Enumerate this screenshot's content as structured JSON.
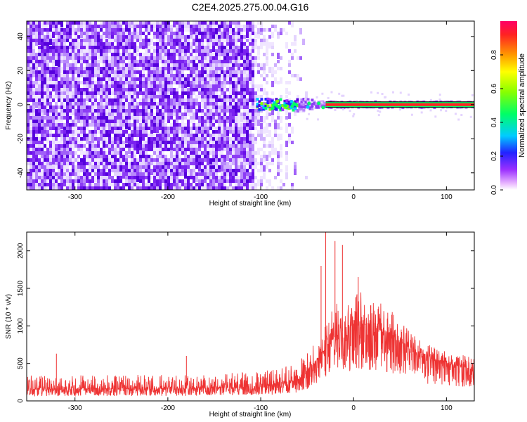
{
  "title": "C2E4.2025.275.00.04.G16",
  "chart_data": [
    {
      "type": "heatmap",
      "xlabel": "Height of straight line (km)",
      "ylabel": "Frequency (Hz)",
      "xlim": [
        -352,
        130
      ],
      "ylim": [
        -50,
        49
      ],
      "xticks": [
        -300,
        -200,
        -100,
        0,
        100
      ],
      "yticks": [
        -40,
        -20,
        0,
        20,
        40
      ],
      "grid": false,
      "colorbar": {
        "label": "Normalized spectral amplitude",
        "range": [
          0,
          1
        ],
        "ticks": [
          "0.0",
          "0.2",
          "0.4",
          "0.6",
          "0.8"
        ]
      },
      "description_values": {
        "noise_region_x": [
          -352,
          -55
        ],
        "signal_line_frequency_hz": 0,
        "signal_start_x": -105,
        "signal_line_amplitude": 0.95,
        "signal_line_x": [
          -30,
          130
        ]
      }
    },
    {
      "type": "line",
      "xlabel": "Height of straight line (km)",
      "ylabel": "SNR (10 * v/v)",
      "xlim": [
        -352,
        130
      ],
      "ylim": [
        0,
        2250
      ],
      "xticks": [
        -300,
        -200,
        -100,
        0,
        100
      ],
      "yticks": [
        0,
        500,
        1000,
        1500,
        2000
      ],
      "grid": false,
      "series": [
        {
          "color": "#ee3333",
          "x": [
            -352,
            -300,
            -250,
            -200,
            -150,
            -100,
            -80,
            -60,
            -50,
            -40,
            -30,
            -20,
            -10,
            0,
            10,
            20,
            30,
            40,
            50,
            60,
            70,
            80,
            90,
            100,
            110,
            120,
            130
          ],
          "base": [
            150,
            155,
            160,
            160,
            170,
            185,
            220,
            280,
            380,
            520,
            700,
            850,
            950,
            1000,
            1010,
            1000,
            930,
            860,
            780,
            700,
            620,
            560,
            520,
            490,
            460,
            440,
            420
          ],
          "upper": [
            320,
            330,
            330,
            330,
            340,
            380,
            420,
            500,
            620,
            800,
            1000,
            1250,
            1350,
            1400,
            1420,
            1380,
            1280,
            1180,
            1050,
            940,
            830,
            740,
            680,
            650,
            610,
            590,
            560
          ]
        }
      ],
      "spikes": [
        {
          "x": -30,
          "y": 2250
        },
        {
          "x": -20,
          "y": 2130
        },
        {
          "x": -12,
          "y": 2080
        },
        {
          "x": -35,
          "y": 1800
        },
        {
          "x": 5,
          "y": 1650
        },
        {
          "x": -320,
          "y": 630
        },
        {
          "x": -180,
          "y": 600
        }
      ]
    }
  ]
}
